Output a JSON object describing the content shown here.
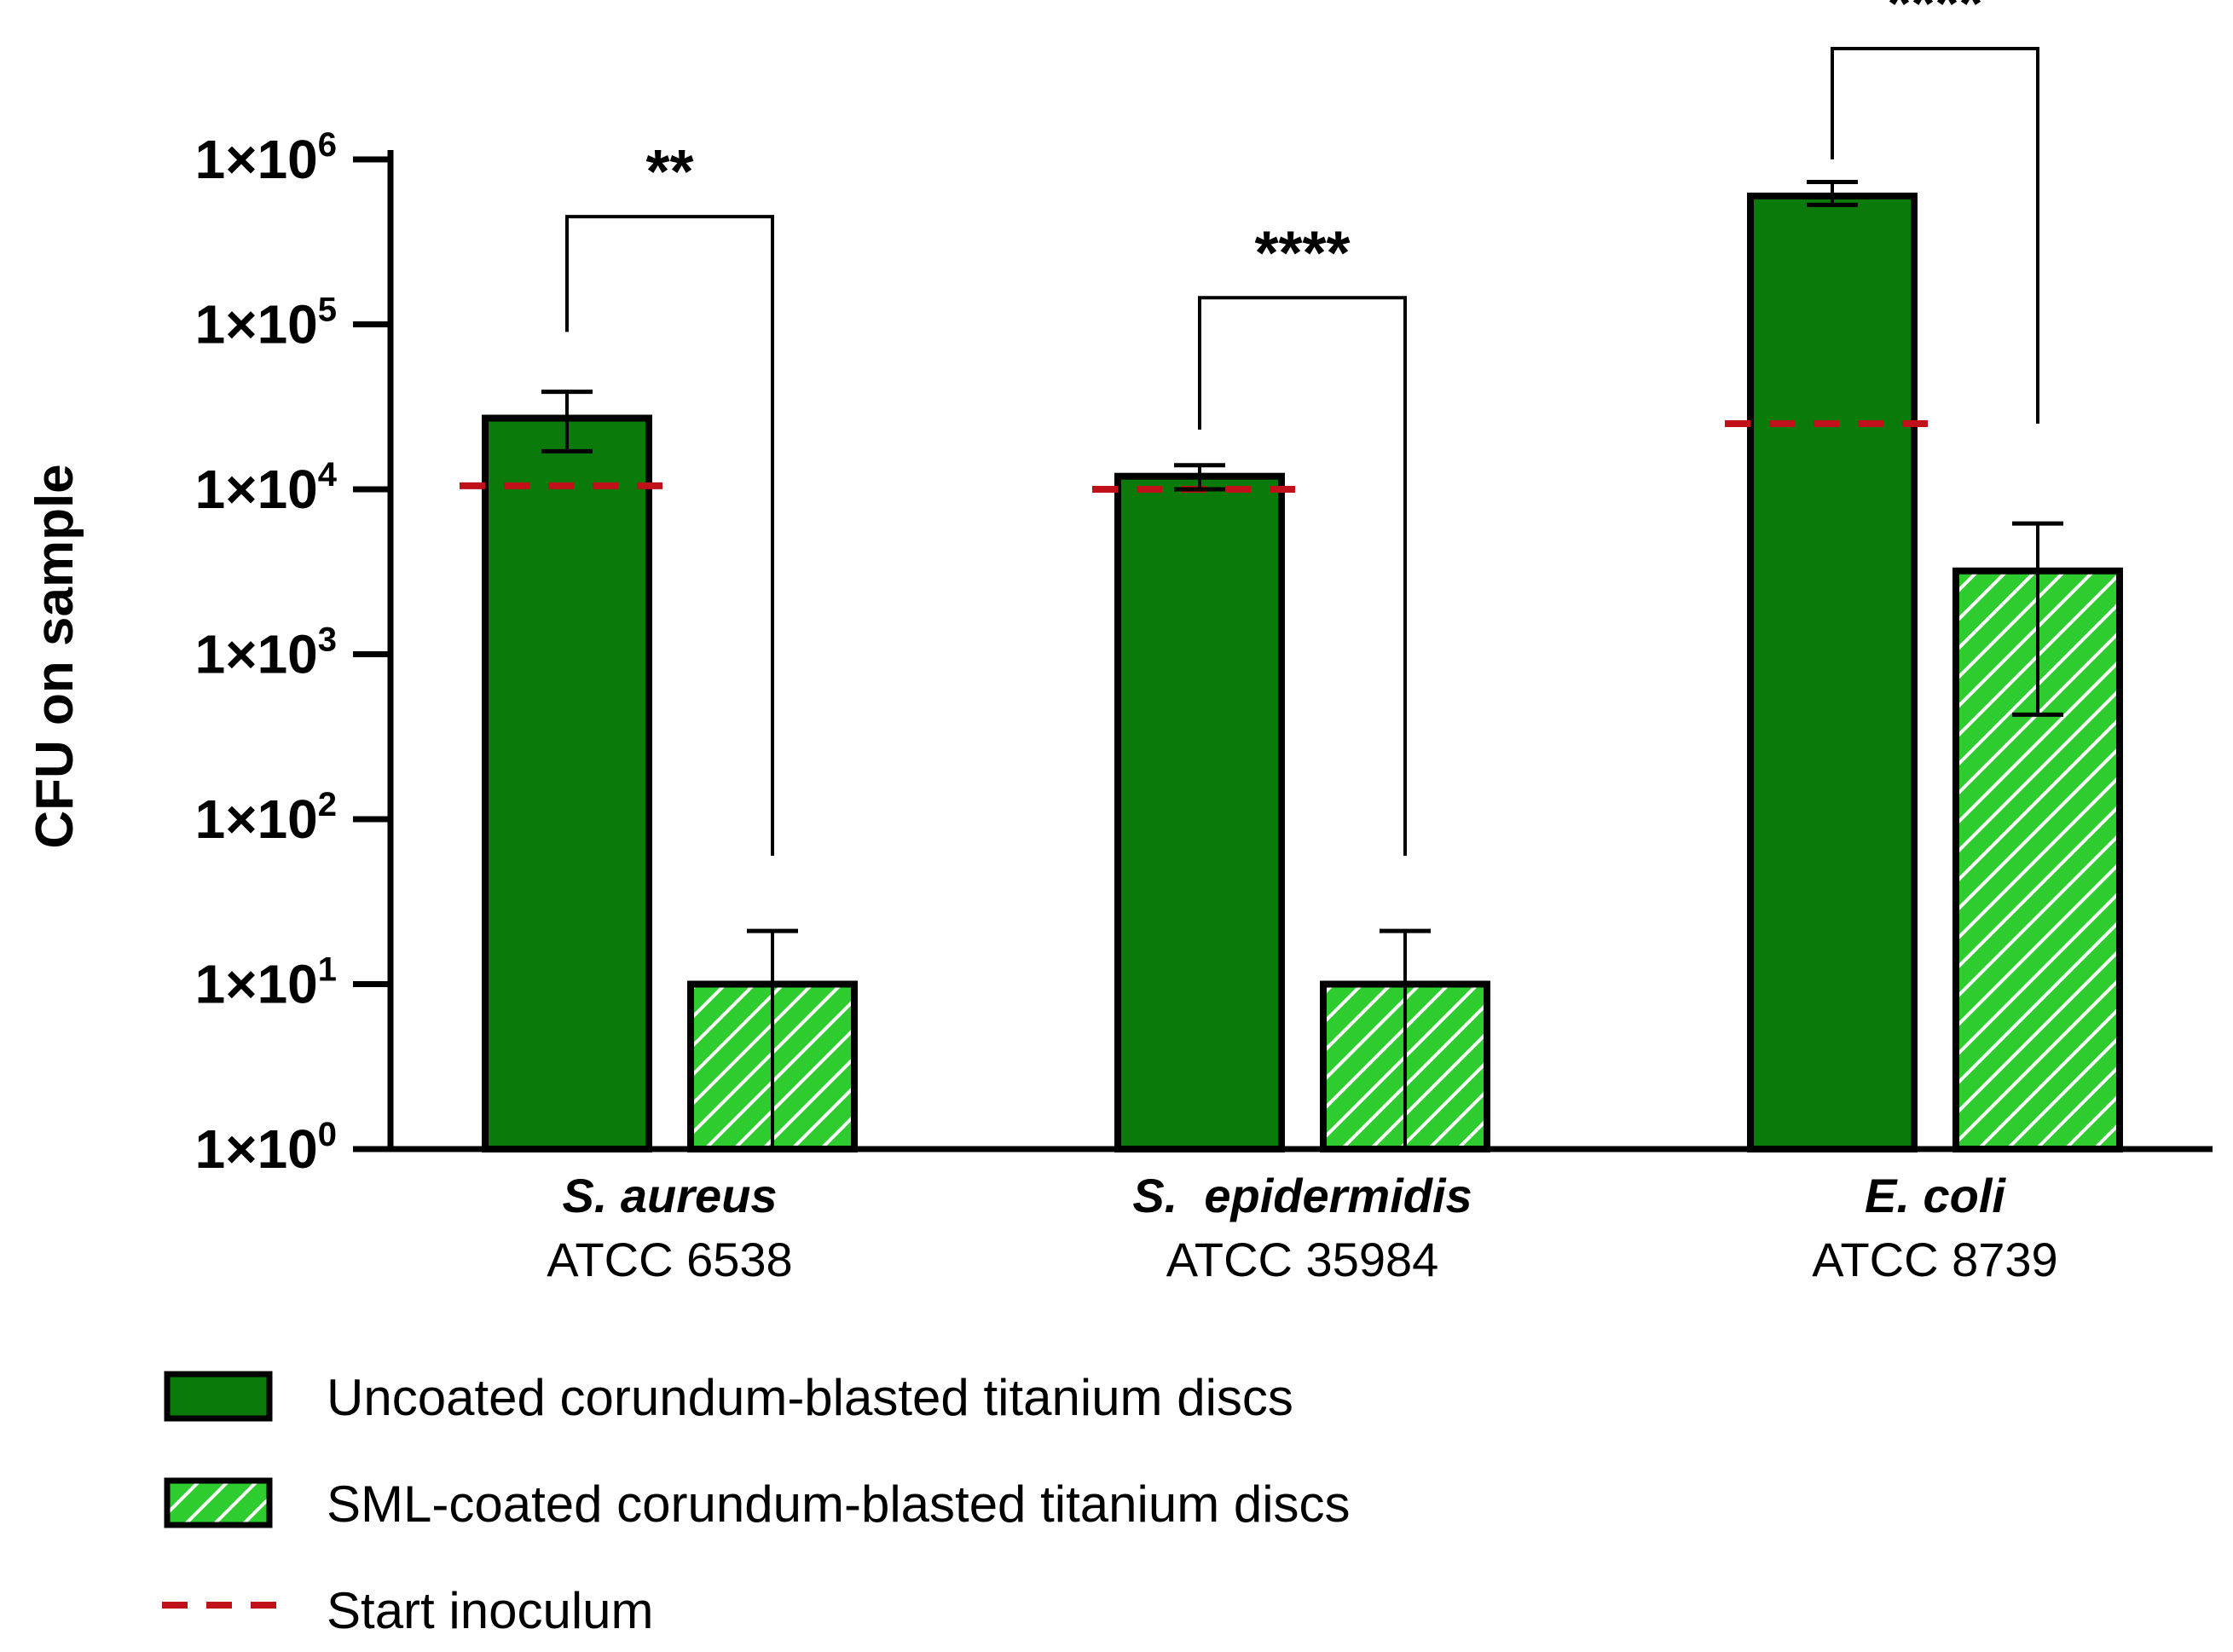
{
  "chart_data": {
    "type": "bar",
    "scale": "log",
    "ylabel": "CFU on sample",
    "ylim": [
      1,
      1000000
    ],
    "y_ticks": [
      {
        "base": "1×10",
        "exp": "0",
        "value": 1
      },
      {
        "base": "1×10",
        "exp": "1",
        "value": 10
      },
      {
        "base": "1×10",
        "exp": "2",
        "value": 100
      },
      {
        "base": "1×10",
        "exp": "3",
        "value": 1000
      },
      {
        "base": "1×10",
        "exp": "4",
        "value": 10000
      },
      {
        "base": "1×10",
        "exp": "5",
        "value": 100000
      },
      {
        "base": "1×10",
        "exp": "6",
        "value": 1000000
      }
    ],
    "categories": [
      {
        "species": "S. aureus",
        "strain": "ATCC 6538"
      },
      {
        "species": "S.  epidermidis",
        "strain": "ATCC 35984"
      },
      {
        "species": "E. coli",
        "strain": "ATCC 8739"
      }
    ],
    "series": [
      {
        "name": "Uncoated corundum-blasted titanium discs",
        "fill": "#0a7a0a",
        "pattern": "solid",
        "values": [
          27000,
          12000,
          600000
        ],
        "err_low": [
          17000,
          10000,
          530000
        ],
        "err_high": [
          39000,
          14000,
          730000
        ]
      },
      {
        "name": "SML-coated corundum-blasted titanium discs",
        "fill": "#2ecc2e",
        "pattern": "hatched",
        "values": [
          10,
          10,
          3200
        ],
        "err_low": [
          1,
          1,
          430
        ],
        "err_high": [
          21,
          21,
          6200
        ]
      }
    ],
    "start_inoculum": {
      "label": "Start inoculum",
      "color": "#c0101a",
      "values": [
        10500,
        10000,
        25000
      ]
    },
    "significance": [
      {
        "label": "**",
        "bracket_left_value": 90000,
        "bracket_right_value": 60,
        "bracket_top_value": 450000
      },
      {
        "label": "****",
        "bracket_left_value": 23000,
        "bracket_right_value": 60,
        "bracket_top_value": 145000
      },
      {
        "label": "****",
        "bracket_left_value": 1000000,
        "bracket_right_value": 25000,
        "bracket_top_value": 4700000
      }
    ]
  }
}
